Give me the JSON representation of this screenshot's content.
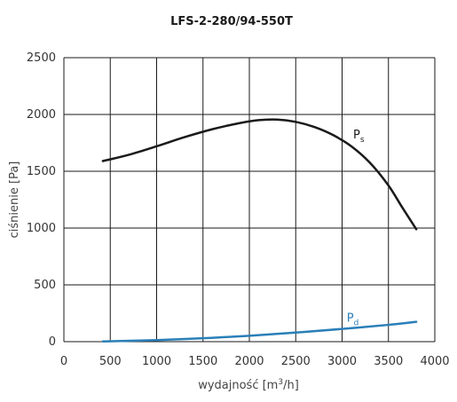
{
  "chart_data": {
    "type": "line",
    "title": "LFS-2-280/94-550T",
    "xlabel": {
      "main": "wydajność [m",
      "sup": "3",
      "tail": "/h]"
    },
    "ylabel": "ciśnienie [Pa]",
    "xlim": [
      0,
      4000
    ],
    "ylim": [
      0,
      2500
    ],
    "x_ticks": [
      0,
      500,
      1000,
      1500,
      2000,
      2500,
      3000,
      3500,
      4000
    ],
    "y_ticks": [
      0,
      500,
      1000,
      1500,
      2000,
      2500
    ],
    "x_tick_labels": [
      "0",
      "500",
      "1000",
      "1500",
      "2000",
      "2500",
      "3000",
      "3500",
      "4000"
    ],
    "y_tick_labels": [
      "0",
      "500",
      "1000",
      "1500",
      "2000",
      "2500"
    ],
    "grid": true,
    "series": [
      {
        "name": "Ps",
        "label_main": "P",
        "label_sub": "s",
        "color": "#1a1a1a",
        "points": [
          [
            420,
            1590
          ],
          [
            700,
            1645
          ],
          [
            1000,
            1720
          ],
          [
            1300,
            1800
          ],
          [
            1600,
            1870
          ],
          [
            1900,
            1925
          ],
          [
            2100,
            1950
          ],
          [
            2300,
            1955
          ],
          [
            2500,
            1935
          ],
          [
            2700,
            1890
          ],
          [
            2900,
            1820
          ],
          [
            3100,
            1720
          ],
          [
            3300,
            1575
          ],
          [
            3500,
            1375
          ],
          [
            3650,
            1180
          ],
          [
            3800,
            990
          ]
        ]
      },
      {
        "name": "Pd",
        "label_main": "P",
        "label_sub": "d",
        "color": "#2a7fb8",
        "points": [
          [
            420,
            2
          ],
          [
            1000,
            14
          ],
          [
            1500,
            30
          ],
          [
            2000,
            52
          ],
          [
            2500,
            80
          ],
          [
            3000,
            112
          ],
          [
            3500,
            148
          ],
          [
            3800,
            175
          ]
        ]
      }
    ]
  }
}
